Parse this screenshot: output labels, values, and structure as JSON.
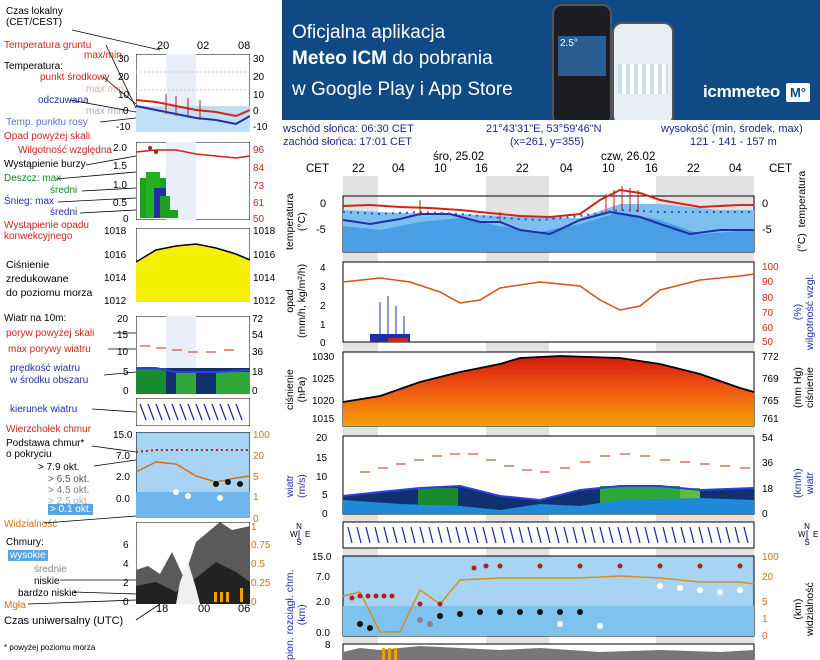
{
  "legend": {
    "local_time": "Czas lokalny\n(CET/CEST)",
    "local_ticks": [
      "20",
      "02",
      "08"
    ],
    "ground_temp": "Temperatura gruntu",
    "ground_maxmin": "max/min",
    "temperature": "Temperatura:",
    "mid_point": "punkt środkowy",
    "max_min_1": "max  min",
    "feels_like": "odczuwana",
    "max_min_2": "max  min",
    "dew_point": "Temp. punktu rosy",
    "temp_ticks": [
      "30",
      "20",
      "10",
      "0",
      "-10"
    ],
    "rain_above": "Opad powyżej skali",
    "humidity": "Wilgotność względna",
    "storm": "Wystąpienie burzy",
    "rain_max": "Deszcz: max",
    "rain_mid": "średni",
    "snow_max": "Śnieg:   max",
    "snow_mid": "średni",
    "precip_event": "Wystąpienie opadu\nkonwekcyjnego",
    "precip_ticks": [
      "2.0",
      "1.5",
      "1.0",
      "0.5",
      "0"
    ],
    "hum_ticks": [
      "96",
      "84",
      "73",
      "61",
      "50"
    ],
    "pressure": "Ciśnienie\nzredukowane\ndo poziomu morza",
    "pres_ticks": [
      "1018",
      "1016",
      "1014",
      "1012"
    ],
    "wind_at": "Wiatr na 10m:",
    "gust_above": "poryw powyżej skali",
    "gust_max": "max porywy wiatru",
    "wind_speed": "prędkość wiatru\nw środku obszaru",
    "wind_ticks": [
      "20",
      "15",
      "10",
      "5",
      "0"
    ],
    "wind_kmh_ticks": [
      "72",
      "54",
      "36",
      "18",
      "0"
    ],
    "wind_dir": "kierunek wiatru",
    "cloud_top": "Wierzchołek chmur",
    "cloud_base": "Podstawa chmur*\no pokryciu",
    "okt1": "> 7.9 okt.",
    "okt2": "> 6.5 okt.",
    "okt3": "> 4.5 okt.",
    "okt4": "> 2.5 okt.",
    "okt5": "> 0.1 okt.",
    "cb_ticks": [
      "15.0",
      "7.0",
      "2.0",
      "0.0"
    ],
    "cb_right_ticks": [
      "100",
      "20",
      "5",
      "1",
      "0"
    ],
    "visibility": "Widzialność",
    "clouds": "Chmury:",
    "high": "wysokie",
    "mid": "średnie",
    "low": "niskie",
    "very_low": "bardzo niskie",
    "fog": "Mgła",
    "cl_ticks": [
      "6",
      "4",
      "2",
      "0"
    ],
    "cl_right": [
      "1",
      "0.75",
      "0.5",
      "0.25",
      "0"
    ],
    "utc_ticks": [
      "18",
      "00",
      "06"
    ],
    "utc": "Czas uniwersalny (UTC)",
    "footnote": "* powyżej poziomu morza"
  },
  "banner": {
    "line1": "Oficjalna aplikacja",
    "line2_bold": "Meteo ICM",
    "line2_rest": " do pobrania",
    "line3": "w Google Play i App Store",
    "logo": "icmmeteo",
    "logo_m": "M°",
    "phone_temp": "2.5°"
  },
  "header": {
    "sunrise": "wschód słońca: 06:30 CET",
    "sunset": "zachód słońca: 17:01 CET",
    "coords": "21°43'31\"E, 53°59'46\"N",
    "grid": "(x=261, y=355)",
    "elev_label": "wysokość (min, środek, max)",
    "elev_values": "121 - 141 - 157 m"
  },
  "main": {
    "cet_left": "CET",
    "cet_right": "CET",
    "day1": "śro, 25.02",
    "day2": "czw, 26.02",
    "hours": [
      "22",
      "04",
      "10",
      "16",
      "22",
      "04",
      "10",
      "16",
      "22",
      "04"
    ],
    "temp_label_left": "temperatura\n(°C)",
    "temp_label_right": "(°C)  temperatura",
    "temp_ticks": [
      "0",
      "-5"
    ],
    "precip_label": "opad\n(mm/h, kg/m²/h)",
    "hum_label": "(%)\nwilgotność wzgl.",
    "precip_ticks": [
      "4",
      "3",
      "2",
      "1",
      "0"
    ],
    "hum_ticks": [
      "100",
      "90",
      "80",
      "70",
      "60",
      "50"
    ],
    "pres_label": "ciśnienie\n(hPa)",
    "pres_label_right": "(mm Hg)\nciśnienie",
    "pres_ticks": [
      "1030",
      "1025",
      "1020",
      "1015"
    ],
    "pres_mm_ticks": [
      "772",
      "769",
      "765",
      "761"
    ],
    "wind_label": "wiatr\n(m/s)",
    "wind_label_right": "(km/h)\nwiatr",
    "wind_ticks": [
      "20",
      "15",
      "10",
      "5",
      "0"
    ],
    "wind_kmh_ticks": [
      "54",
      "36",
      "18",
      "0"
    ],
    "cb_label": "pion. rozciągł. chm.\n(km)",
    "vis_label": "(km)\nwidzialność",
    "cb_ticks": [
      "15.0",
      "7.0",
      "2.0",
      "0.0"
    ],
    "vis_ticks": [
      "100",
      "20",
      "5",
      "1",
      "0"
    ],
    "cl_ticks": [
      "8"
    ]
  },
  "colors": {
    "banner": "#0f4a84",
    "temp_red": "#d1241a",
    "dew_blue": "#1f2fa8",
    "sky_light": "#a8d4f4",
    "pressure_yellow": "#f5f000"
  }
}
